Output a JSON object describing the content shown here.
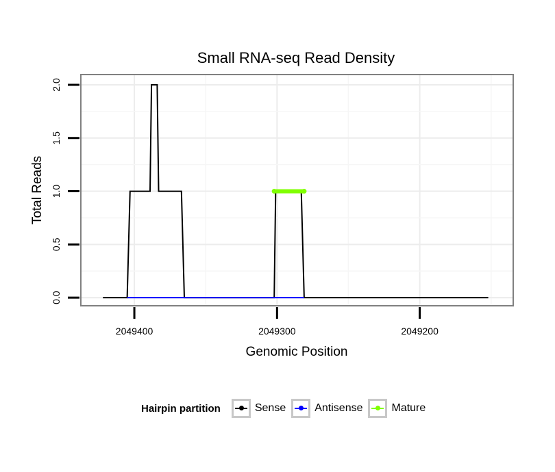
{
  "chart_data": {
    "type": "line",
    "title": "Small RNA-seq Read Density",
    "xlabel": "Genomic Position",
    "ylabel": "Total Reads",
    "x_reversed": true,
    "xlim": [
      2049437,
      2049135
    ],
    "ylim": [
      -0.07,
      2.09
    ],
    "x_ticks": [
      2049400,
      2049300,
      2049200
    ],
    "x_tick_labels": [
      "2049400",
      "2049300",
      "2049200"
    ],
    "y_ticks": [
      0,
      0.5,
      1,
      1.5,
      2
    ],
    "y_tick_labels": [
      "0.0",
      "0.5",
      "1.0",
      "1.5",
      "2.0"
    ],
    "grid": true,
    "legend": {
      "position": "bottom",
      "title": "Hairpin partition",
      "entries": [
        "Sense",
        "Antisense",
        "Mature"
      ]
    },
    "series": [
      {
        "name": "Sense",
        "color": "#000000",
        "x": [
          2049422,
          2049405,
          2049403,
          2049389,
          2049388,
          2049384,
          2049383,
          2049378,
          2049377,
          2049367,
          2049365,
          2049302,
          2049301,
          2049283,
          2049281,
          2049152
        ],
        "y": [
          0,
          0,
          1,
          1,
          2,
          2,
          1,
          1,
          1,
          1,
          0,
          0,
          1,
          1,
          0,
          0
        ]
      },
      {
        "name": "Antisense",
        "color": "#0000ff",
        "x": [
          2049405,
          2049365,
          2049302,
          2049281
        ],
        "y": [
          0,
          0,
          0,
          0
        ]
      },
      {
        "name": "Mature",
        "color": "#80ff00",
        "x": [
          2049302,
          2049281
        ],
        "y": [
          1,
          1
        ]
      }
    ]
  }
}
